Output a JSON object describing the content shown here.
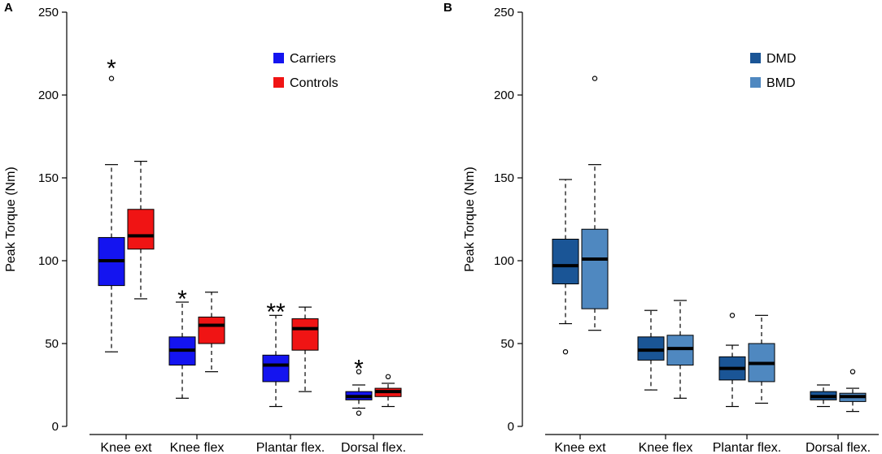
{
  "chart_data": [
    {
      "panel": "A",
      "type": "boxplot",
      "ylabel": "Peak Torque (Nm)",
      "xlabel": "",
      "ylim": [
        0,
        250
      ],
      "yticks": [
        "0",
        "50",
        "100",
        "150",
        "200",
        "250"
      ],
      "ytick_values": [
        0,
        50,
        100,
        150,
        200,
        250
      ],
      "categories": [
        "Knee ext",
        "Knee flex",
        "Plantar flex.",
        "Dorsal flex."
      ],
      "legend_position": "top-right",
      "series": [
        {
          "name": "Carriers",
          "color": "#1414f0",
          "boxes": [
            {
              "whisker_low": 45,
              "q1": 85,
              "median": 100,
              "q3": 114,
              "whisker_high": 158,
              "outliers": [
                210
              ]
            },
            {
              "whisker_low": 17,
              "q1": 37,
              "median": 46,
              "q3": 54,
              "whisker_high": 75,
              "outliers": []
            },
            {
              "whisker_low": 12,
              "q1": 27,
              "median": 37,
              "q3": 43,
              "whisker_high": 67,
              "outliers": []
            },
            {
              "whisker_low": 11,
              "q1": 16,
              "median": 18,
              "q3": 21,
              "whisker_high": 25,
              "outliers": [
                8,
                33
              ]
            }
          ]
        },
        {
          "name": "Controls",
          "color": "#f01414",
          "boxes": [
            {
              "whisker_low": 77,
              "q1": 107,
              "median": 115,
              "q3": 131,
              "whisker_high": 160,
              "outliers": []
            },
            {
              "whisker_low": 33,
              "q1": 50,
              "median": 61,
              "q3": 66,
              "whisker_high": 81,
              "outliers": []
            },
            {
              "whisker_low": 21,
              "q1": 46,
              "median": 59,
              "q3": 65,
              "whisker_high": 72,
              "outliers": []
            },
            {
              "whisker_low": 12,
              "q1": 18,
              "median": 21,
              "q3": 23,
              "whisker_high": 26,
              "outliers": [
                30
              ]
            }
          ]
        }
      ],
      "annotations": [
        {
          "text": "*",
          "category": "Knee ext",
          "y": 220
        },
        {
          "text": "*",
          "category": "Knee flex",
          "y": 81
        },
        {
          "text": "**",
          "category": "Plantar flex.",
          "y": 73
        },
        {
          "text": "*",
          "category": "Dorsal flex.",
          "y": 39
        }
      ]
    },
    {
      "panel": "B",
      "type": "boxplot",
      "ylabel": "Peak Torque (Nm)",
      "xlabel": "",
      "ylim": [
        0,
        250
      ],
      "yticks": [
        "0",
        "50",
        "100",
        "150",
        "200",
        "250"
      ],
      "ytick_values": [
        0,
        50,
        100,
        150,
        200,
        250
      ],
      "categories": [
        "Knee ext",
        "Knee flex",
        "Plantar flex.",
        "Dorsal flex."
      ],
      "legend_position": "top-right",
      "series": [
        {
          "name": "DMD",
          "color": "#1a5596",
          "boxes": [
            {
              "whisker_low": 62,
              "q1": 86,
              "median": 97,
              "q3": 113,
              "whisker_high": 149,
              "outliers": [
                45
              ]
            },
            {
              "whisker_low": 22,
              "q1": 40,
              "median": 46,
              "q3": 54,
              "whisker_high": 70,
              "outliers": []
            },
            {
              "whisker_low": 12,
              "q1": 28,
              "median": 35,
              "q3": 42,
              "whisker_high": 49,
              "outliers": [
                67
              ]
            },
            {
              "whisker_low": 12,
              "q1": 16,
              "median": 18,
              "q3": 21,
              "whisker_high": 25,
              "outliers": []
            }
          ]
        },
        {
          "name": "BMD",
          "color": "#4f88c0",
          "boxes": [
            {
              "whisker_low": 58,
              "q1": 71,
              "median": 101,
              "q3": 119,
              "whisker_high": 158,
              "outliers": [
                210
              ]
            },
            {
              "whisker_low": 17,
              "q1": 37,
              "median": 47,
              "q3": 55,
              "whisker_high": 76,
              "outliers": []
            },
            {
              "whisker_low": 14,
              "q1": 27,
              "median": 38,
              "q3": 50,
              "whisker_high": 67,
              "outliers": []
            },
            {
              "whisker_low": 9,
              "q1": 15,
              "median": 18,
              "q3": 20,
              "whisker_high": 23,
              "outliers": [
                33
              ]
            }
          ]
        }
      ],
      "annotations": []
    }
  ]
}
